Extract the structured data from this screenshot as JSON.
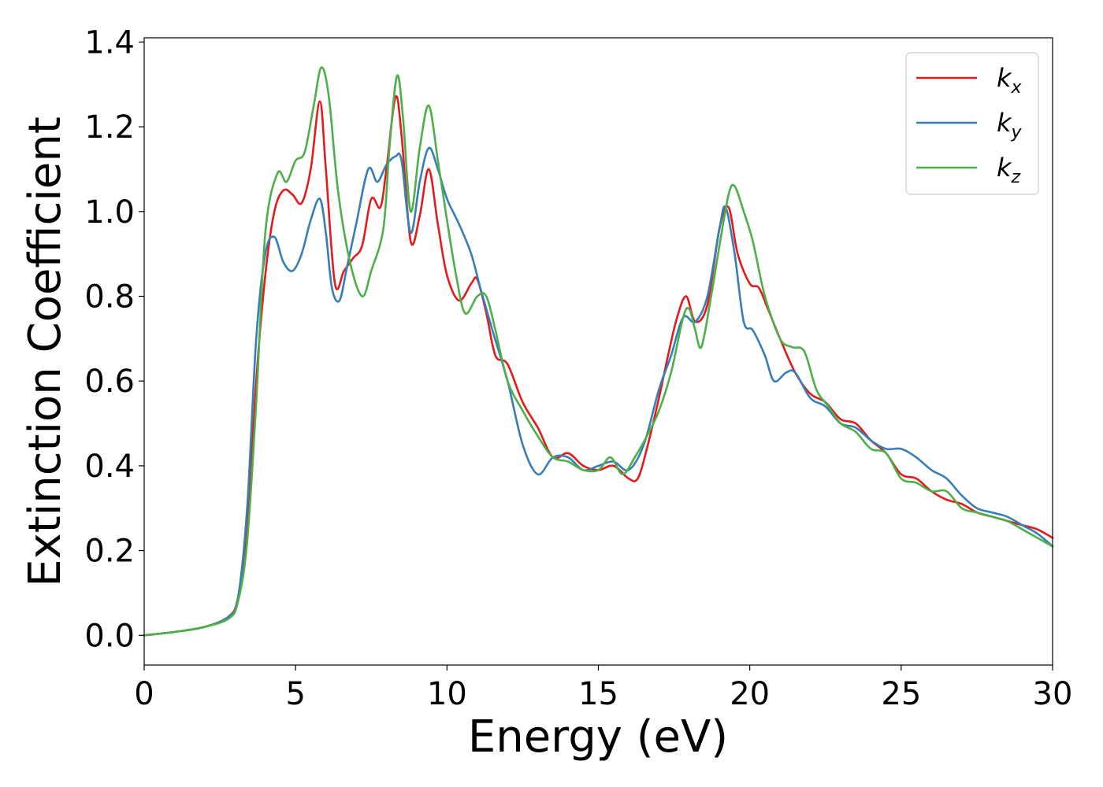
{
  "chart_data": {
    "type": "line",
    "xlabel": "Energy (eV)",
    "ylabel": "Extinction Coefficient",
    "xlim": [
      0,
      30
    ],
    "ylim": [
      -0.07,
      1.41
    ],
    "xticks": [
      0,
      5,
      10,
      15,
      20,
      25,
      30
    ],
    "xtick_labels": [
      "0",
      "5",
      "10",
      "15",
      "20",
      "25",
      "30"
    ],
    "yticks": [
      0.0,
      0.2,
      0.4,
      0.6,
      0.8,
      1.0,
      1.2,
      1.4
    ],
    "ytick_labels": [
      "0.0",
      "0.2",
      "0.4",
      "0.6",
      "0.8",
      "1.0",
      "1.2",
      "1.4"
    ],
    "grid": false,
    "legend_position": "top-right",
    "series": [
      {
        "name": "k",
        "subscript": "x",
        "color": "#e41a1c",
        "x": [
          0,
          1,
          2,
          2.8,
          3.1,
          3.4,
          3.7,
          4.0,
          4.3,
          4.6,
          4.9,
          5.2,
          5.5,
          5.8,
          6.0,
          6.3,
          6.6,
          6.9,
          7.2,
          7.5,
          7.8,
          8.0,
          8.3,
          8.5,
          8.8,
          9.1,
          9.4,
          9.7,
          10.0,
          10.4,
          10.8,
          11.0,
          11.3,
          11.6,
          12.0,
          12.5,
          13.0,
          13.5,
          14.0,
          14.5,
          15.0,
          15.5,
          16.0,
          16.3,
          16.6,
          17.0,
          17.3,
          17.6,
          17.9,
          18.2,
          18.6,
          19.0,
          19.3,
          19.6,
          20.0,
          20.3,
          20.6,
          21.0,
          21.5,
          22.0,
          22.5,
          23.0,
          23.5,
          24.0,
          24.5,
          25.0,
          25.5,
          26.0,
          26.5,
          27.0,
          27.5,
          28.0,
          28.5,
          29.0,
          29.5,
          30.0
        ],
        "values": [
          0.0,
          0.008,
          0.02,
          0.045,
          0.09,
          0.25,
          0.6,
          0.85,
          1.0,
          1.05,
          1.04,
          1.02,
          1.1,
          1.26,
          1.1,
          0.83,
          0.86,
          0.89,
          0.92,
          1.03,
          1.01,
          1.1,
          1.27,
          1.18,
          0.93,
          0.99,
          1.1,
          0.97,
          0.85,
          0.79,
          0.83,
          0.84,
          0.76,
          0.66,
          0.64,
          0.55,
          0.49,
          0.42,
          0.43,
          0.4,
          0.39,
          0.4,
          0.37,
          0.37,
          0.44,
          0.56,
          0.66,
          0.75,
          0.8,
          0.74,
          0.78,
          0.96,
          1.01,
          0.9,
          0.83,
          0.82,
          0.77,
          0.7,
          0.62,
          0.57,
          0.55,
          0.51,
          0.5,
          0.46,
          0.43,
          0.38,
          0.37,
          0.34,
          0.32,
          0.31,
          0.29,
          0.28,
          0.27,
          0.26,
          0.25,
          0.23
        ]
      },
      {
        "name": "k",
        "subscript": "y",
        "color": "#377eb8",
        "x": [
          0,
          1,
          2,
          2.8,
          3.1,
          3.4,
          3.7,
          4.0,
          4.3,
          4.6,
          4.9,
          5.2,
          5.5,
          5.8,
          6.0,
          6.2,
          6.45,
          6.7,
          7.0,
          7.4,
          7.7,
          8.0,
          8.3,
          8.5,
          8.8,
          9.1,
          9.4,
          9.7,
          10.0,
          10.4,
          10.8,
          11.1,
          11.5,
          12.0,
          12.5,
          13.0,
          13.5,
          14.0,
          14.5,
          15.0,
          15.5,
          16.0,
          16.5,
          17.0,
          17.4,
          17.8,
          18.2,
          18.6,
          19.0,
          19.2,
          19.5,
          19.8,
          20.1,
          20.5,
          20.8,
          21.2,
          21.5,
          22.0,
          22.5,
          23.0,
          23.5,
          24.0,
          24.5,
          25.0,
          25.5,
          26.0,
          26.5,
          27.0,
          27.5,
          28.0,
          28.5,
          29.0,
          29.5,
          30.0
        ],
        "values": [
          0.0,
          0.008,
          0.02,
          0.045,
          0.09,
          0.3,
          0.7,
          0.9,
          0.94,
          0.88,
          0.86,
          0.9,
          0.98,
          1.03,
          0.95,
          0.82,
          0.79,
          0.87,
          0.97,
          1.1,
          1.07,
          1.11,
          1.13,
          1.12,
          0.95,
          1.07,
          1.15,
          1.1,
          1.03,
          0.97,
          0.9,
          0.82,
          0.72,
          0.6,
          0.45,
          0.38,
          0.42,
          0.42,
          0.39,
          0.4,
          0.41,
          0.39,
          0.45,
          0.58,
          0.66,
          0.75,
          0.74,
          0.8,
          0.96,
          1.01,
          0.9,
          0.74,
          0.72,
          0.66,
          0.6,
          0.62,
          0.62,
          0.56,
          0.54,
          0.5,
          0.49,
          0.46,
          0.44,
          0.44,
          0.42,
          0.39,
          0.37,
          0.33,
          0.3,
          0.29,
          0.28,
          0.26,
          0.24,
          0.21
        ]
      },
      {
        "name": "k",
        "subscript": "z",
        "color": "#4daf4a",
        "x": [
          0,
          1,
          2,
          2.8,
          3.1,
          3.4,
          3.7,
          4.0,
          4.4,
          4.7,
          5.0,
          5.3,
          5.6,
          5.85,
          6.1,
          6.4,
          6.8,
          7.2,
          7.5,
          7.9,
          8.1,
          8.35,
          8.55,
          8.8,
          9.1,
          9.4,
          9.7,
          10.0,
          10.3,
          10.6,
          11.0,
          11.3,
          11.6,
          12.0,
          12.5,
          13.0,
          13.5,
          14.0,
          14.5,
          15.0,
          15.4,
          15.8,
          16.2,
          16.6,
          17.0,
          17.4,
          17.8,
          18.0,
          18.2,
          18.4,
          18.7,
          19.0,
          19.3,
          19.5,
          19.8,
          20.1,
          20.5,
          21.0,
          21.4,
          21.8,
          22.2,
          22.6,
          23.0,
          23.5,
          24.0,
          24.5,
          25.0,
          25.5,
          26.0,
          26.5,
          27.0,
          27.5,
          28.0,
          28.5,
          29.0,
          29.5,
          30.0
        ],
        "values": [
          0.0,
          0.008,
          0.02,
          0.04,
          0.08,
          0.22,
          0.55,
          0.95,
          1.09,
          1.07,
          1.12,
          1.14,
          1.25,
          1.34,
          1.27,
          1.05,
          0.88,
          0.8,
          0.86,
          0.96,
          1.15,
          1.32,
          1.22,
          1.0,
          1.15,
          1.25,
          1.12,
          0.98,
          0.85,
          0.76,
          0.8,
          0.8,
          0.72,
          0.6,
          0.53,
          0.47,
          0.42,
          0.41,
          0.39,
          0.39,
          0.42,
          0.38,
          0.42,
          0.47,
          0.53,
          0.62,
          0.75,
          0.77,
          0.72,
          0.68,
          0.79,
          0.92,
          1.04,
          1.06,
          1.0,
          0.93,
          0.8,
          0.7,
          0.68,
          0.67,
          0.58,
          0.54,
          0.5,
          0.48,
          0.44,
          0.43,
          0.37,
          0.36,
          0.34,
          0.34,
          0.3,
          0.29,
          0.28,
          0.27,
          0.25,
          0.23,
          0.21
        ]
      }
    ]
  }
}
